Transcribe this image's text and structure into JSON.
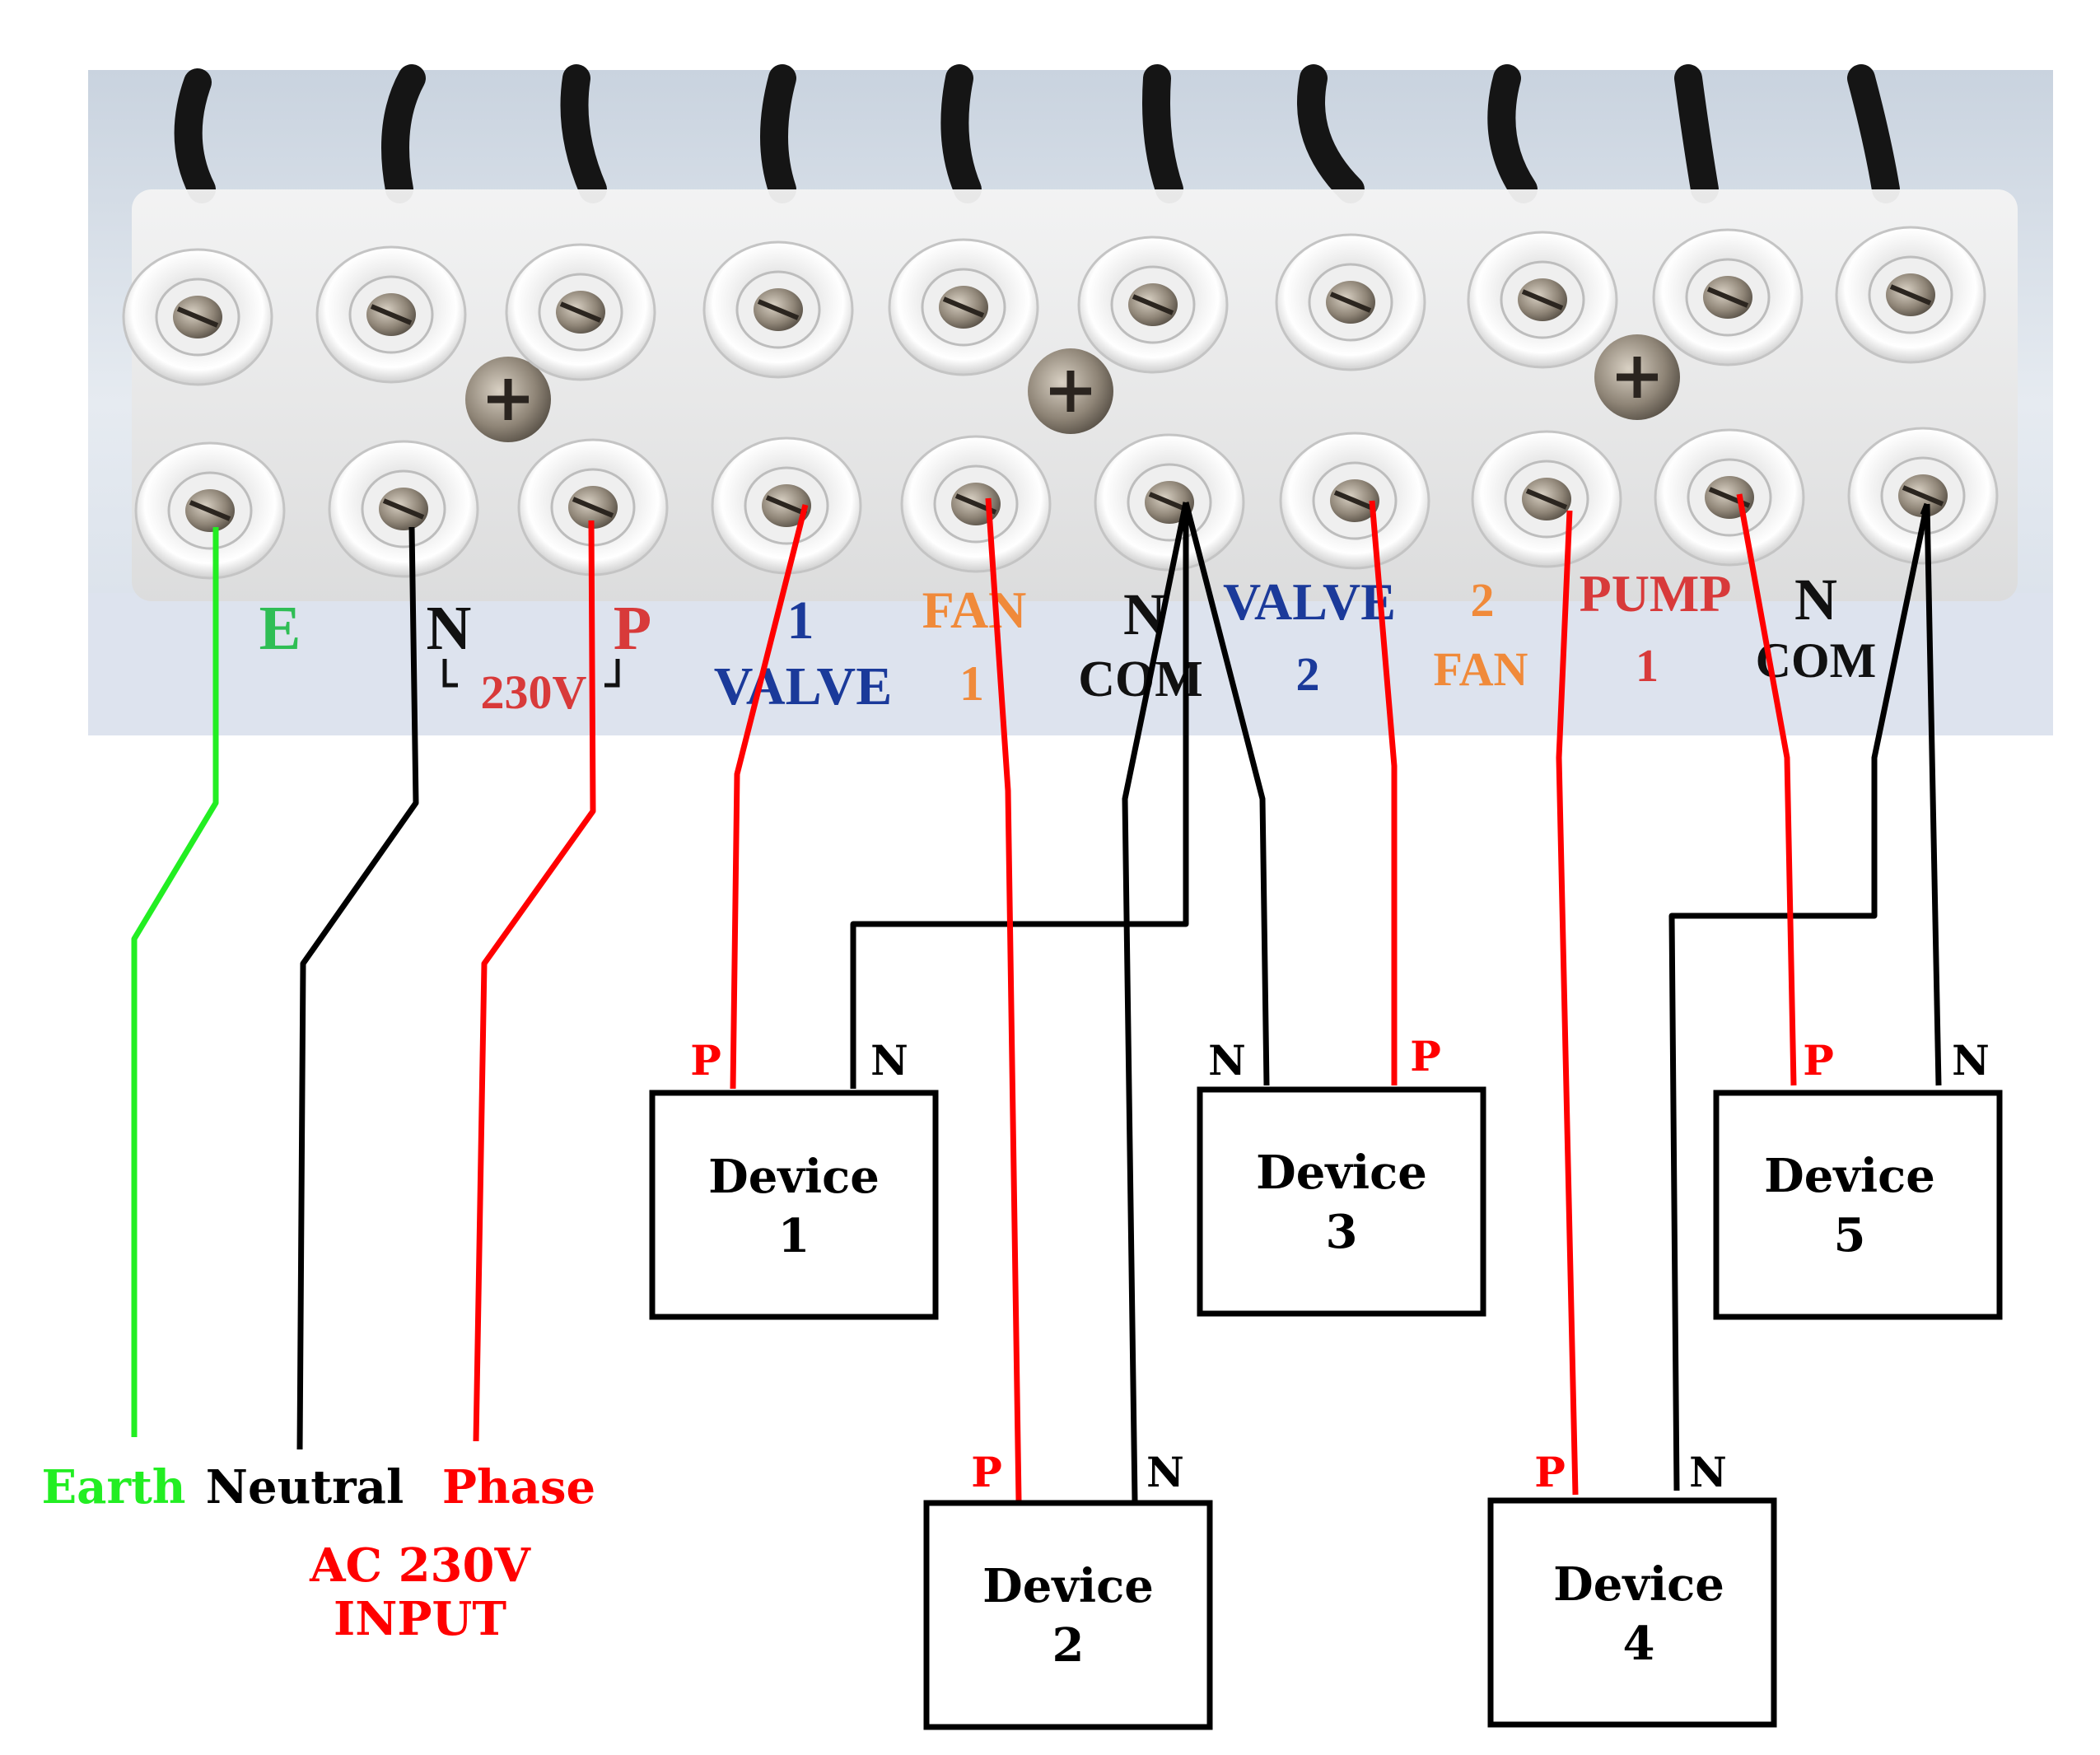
{
  "colors": {
    "earth": "#22ee22",
    "neutral": "#000000",
    "phase": "#ff0000",
    "panel": "#dfe5ee",
    "valve_blue": "#1b3a9a",
    "fan_orange": "#f08a3a"
  },
  "terminal_strip": {
    "top_row": {
      "labels": [
        "E",
        "N",
        "P",
        "1",
        "FAN",
        "N",
        "VALVE",
        "2",
        "PUMP",
        "N"
      ]
    },
    "bottom_row": {
      "labels": [
        "230V",
        "VALVE",
        "1",
        "COM",
        "2",
        "FAN",
        "1",
        "COM"
      ]
    }
  },
  "input": {
    "earth_label": "Earth",
    "neutral_label": "Neutral",
    "phase_label": "Phase",
    "caption_line1": "AC 230V",
    "caption_line2": "INPUT"
  },
  "devices": [
    {
      "name": "Device",
      "number": "1",
      "phase_pin": "P",
      "neutral_pin": "N"
    },
    {
      "name": "Device",
      "number": "2",
      "phase_pin": "P",
      "neutral_pin": "N"
    },
    {
      "name": "Device",
      "number": "3",
      "phase_pin": "P",
      "neutral_pin": "N"
    },
    {
      "name": "Device",
      "number": "4",
      "phase_pin": "P",
      "neutral_pin": "N"
    },
    {
      "name": "Device",
      "number": "5",
      "phase_pin": "P",
      "neutral_pin": "N"
    }
  ]
}
